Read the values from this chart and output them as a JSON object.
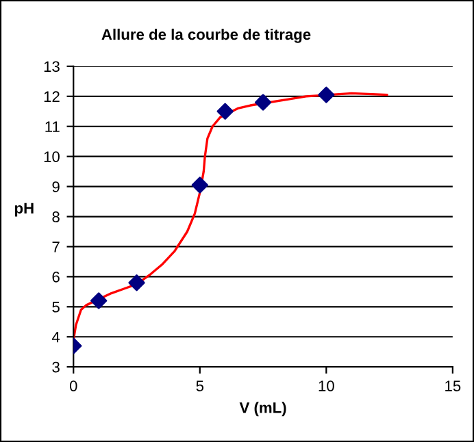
{
  "chart_data": {
    "type": "scatter",
    "title": "Allure de la courbe de titrage",
    "xlabel": "V (mL)",
    "ylabel": "pH",
    "xlim": [
      0,
      15
    ],
    "xticks": [
      0,
      5,
      10,
      15
    ],
    "ylim": [
      3,
      13
    ],
    "yticks": [
      3,
      4,
      5,
      6,
      7,
      8,
      9,
      10,
      11,
      12,
      13
    ],
    "grid": "y",
    "legend": false,
    "series": [
      {
        "type": "line",
        "color": "#ff0000",
        "marker": "none",
        "line_style": "solid",
        "x": [
          0,
          0.1,
          0.3,
          0.5,
          1,
          1.5,
          2,
          2.5,
          3,
          3.5,
          4,
          4.5,
          4.8,
          5,
          5.15,
          5.2,
          5.3,
          5.5,
          5.8,
          6.5,
          7.0,
          8.5,
          9.2,
          11,
          12.4
        ],
        "values": [
          3.9,
          4.4,
          4.9,
          5.05,
          5.25,
          5.45,
          5.6,
          5.75,
          6.05,
          6.4,
          6.85,
          7.5,
          8.1,
          8.8,
          9.5,
          10,
          10.6,
          11,
          11.3,
          11.6,
          11.7,
          11.9,
          12.0,
          12.1,
          12.05
        ]
      },
      {
        "color": "#000080",
        "marker": "diamond",
        "x": [
          0,
          1,
          2.5,
          5,
          6,
          7.5,
          10
        ],
        "values": [
          3.7,
          5.2,
          5.8,
          9.05,
          11.5,
          11.8,
          12.05
        ]
      }
    ]
  }
}
